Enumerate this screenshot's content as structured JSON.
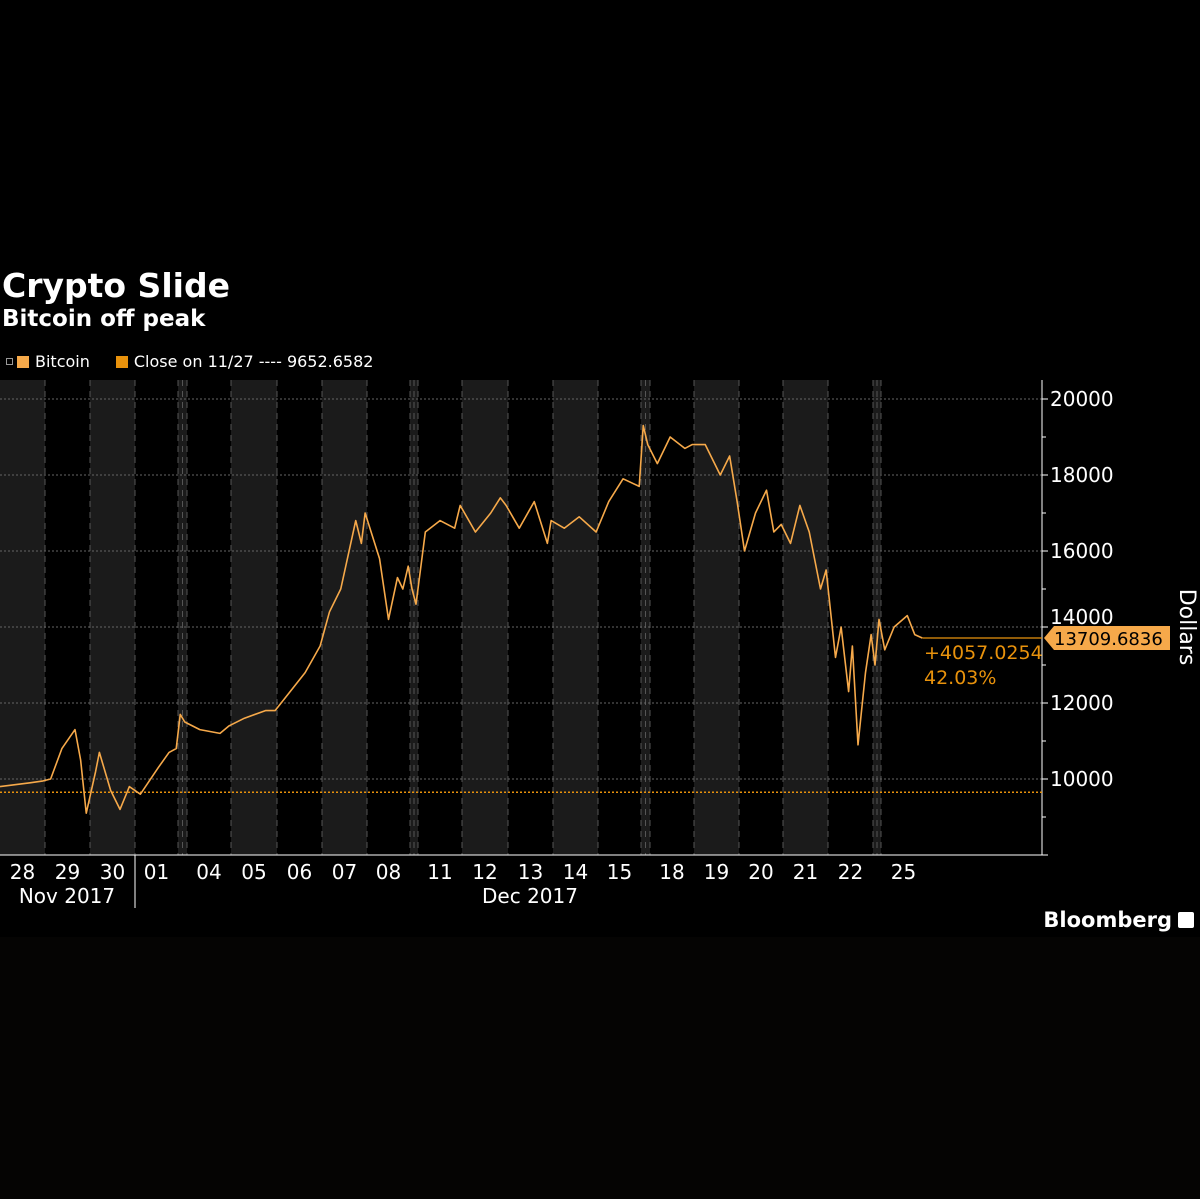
{
  "title": "Crypto Slide",
  "subtitle": "Bitcoin off peak",
  "legend": [
    {
      "label": "Bitcoin",
      "color": "#f6a94a"
    },
    {
      "label": "Close on 11/27 ---- 9652.6582",
      "color": "#e8920c"
    }
  ],
  "brand": "Bloomberg",
  "colors": {
    "line": "#f6a94a",
    "reference": "#e8920c",
    "band": "#1b1b1b",
    "background": "#000000"
  },
  "chart_data": {
    "type": "line",
    "title": "Crypto Slide",
    "subtitle": "Bitcoin off peak",
    "ylabel": "Dollars",
    "ylim": [
      8000,
      20500
    ],
    "yticks": [
      10000,
      12000,
      14000,
      16000,
      18000,
      20000
    ],
    "grid": true,
    "y_axis_side": "right",
    "xtick_labels": [
      {
        "date": "2017-11-28",
        "label": "28"
      },
      {
        "date": "2017-11-29",
        "label": "29"
      },
      {
        "date": "2017-11-30",
        "label": "30"
      },
      {
        "date": "2017-12-01",
        "label": "01"
      },
      {
        "date": "2017-12-04",
        "label": "04"
      },
      {
        "date": "2017-12-05",
        "label": "05"
      },
      {
        "date": "2017-12-06",
        "label": "06"
      },
      {
        "date": "2017-12-07",
        "label": "07"
      },
      {
        "date": "2017-12-08",
        "label": "08"
      },
      {
        "date": "2017-12-11",
        "label": "11"
      },
      {
        "date": "2017-12-12",
        "label": "12"
      },
      {
        "date": "2017-12-13",
        "label": "13"
      },
      {
        "date": "2017-12-14",
        "label": "14"
      },
      {
        "date": "2017-12-15",
        "label": "15"
      },
      {
        "date": "2017-12-18",
        "label": "18"
      },
      {
        "date": "2017-12-19",
        "label": "19"
      },
      {
        "date": "2017-12-20",
        "label": "20"
      },
      {
        "date": "2017-12-21",
        "label": "21"
      },
      {
        "date": "2017-12-22",
        "label": "22"
      },
      {
        "date": "2017-12-25",
        "label": "25"
      }
    ],
    "month_labels": [
      {
        "label": "Nov 2017"
      },
      {
        "label": "Dec 2017"
      }
    ],
    "reference_line": {
      "label": "Close on 11/27",
      "value": 9652.6582
    },
    "last_value": 13709.6836,
    "change": "+4057.0254",
    "change_pct": "42.03%",
    "series": [
      {
        "name": "Bitcoin",
        "points": [
          [
            "2017-11-28T00",
            9800
          ],
          [
            "2017-11-28T08",
            9850
          ],
          [
            "2017-11-28T16",
            9900
          ],
          [
            "2017-11-28T23",
            9950
          ],
          [
            "2017-11-29T03",
            10000
          ],
          [
            "2017-11-29T09",
            10800
          ],
          [
            "2017-11-29T16",
            11300
          ],
          [
            "2017-11-29T19",
            10500
          ],
          [
            "2017-11-29T22",
            9100
          ],
          [
            "2017-11-30T03",
            10200
          ],
          [
            "2017-11-30T05",
            10700
          ],
          [
            "2017-11-30T11",
            9700
          ],
          [
            "2017-11-30T16",
            9200
          ],
          [
            "2017-11-30T21",
            9800
          ],
          [
            "2017-12-01T03",
            9600
          ],
          [
            "2017-12-01T13",
            10300
          ],
          [
            "2017-12-01T19",
            10700
          ],
          [
            "2017-12-01T23",
            10800
          ],
          [
            "2017-12-02T12",
            11700
          ],
          [
            "2017-12-03T12",
            11500
          ],
          [
            "2017-12-04T07",
            11300
          ],
          [
            "2017-12-04T18",
            11200
          ],
          [
            "2017-12-04T23",
            11400
          ],
          [
            "2017-12-05T07",
            11600
          ],
          [
            "2017-12-05T18",
            11800
          ],
          [
            "2017-12-05T23",
            11800
          ],
          [
            "2017-12-06T07",
            12300
          ],
          [
            "2017-12-06T15",
            12800
          ],
          [
            "2017-12-06T23",
            13500
          ],
          [
            "2017-12-07T04",
            14400
          ],
          [
            "2017-12-07T10",
            15000
          ],
          [
            "2017-12-07T18",
            16800
          ],
          [
            "2017-12-07T21",
            16200
          ],
          [
            "2017-12-07T23",
            17000
          ],
          [
            "2017-12-08T07",
            15800
          ],
          [
            "2017-12-08T12",
            14200
          ],
          [
            "2017-12-08T17",
            15300
          ],
          [
            "2017-12-08T20",
            15000
          ],
          [
            "2017-12-08T23",
            15600
          ],
          [
            "2017-12-09T12",
            15000
          ],
          [
            "2017-12-10T12",
            14600
          ],
          [
            "2017-12-11T04",
            16500
          ],
          [
            "2017-12-11T12",
            16800
          ],
          [
            "2017-12-11T20",
            16600
          ],
          [
            "2017-12-11T23",
            17200
          ],
          [
            "2017-12-12T07",
            16500
          ],
          [
            "2017-12-12T15",
            17000
          ],
          [
            "2017-12-12T20",
            17400
          ],
          [
            "2017-12-12T23",
            17200
          ],
          [
            "2017-12-13T06",
            16600
          ],
          [
            "2017-12-13T14",
            17300
          ],
          [
            "2017-12-13T21",
            16200
          ],
          [
            "2017-12-13T23",
            16800
          ],
          [
            "2017-12-14T06",
            16600
          ],
          [
            "2017-12-14T14",
            16900
          ],
          [
            "2017-12-14T23",
            16500
          ],
          [
            "2017-12-15T06",
            17300
          ],
          [
            "2017-12-15T14",
            17900
          ],
          [
            "2017-12-15T23",
            17700
          ],
          [
            "2017-12-16T12",
            19300
          ],
          [
            "2017-12-17T12",
            18800
          ],
          [
            "2017-12-18T04",
            18300
          ],
          [
            "2017-12-18T11",
            19000
          ],
          [
            "2017-12-18T19",
            18700
          ],
          [
            "2017-12-18T23",
            18800
          ],
          [
            "2017-12-19T06",
            18800
          ],
          [
            "2017-12-19T14",
            18000
          ],
          [
            "2017-12-19T19",
            18500
          ],
          [
            "2017-12-19T23",
            17300
          ],
          [
            "2017-12-20T03",
            16000
          ],
          [
            "2017-12-20T09",
            17000
          ],
          [
            "2017-12-20T15",
            17600
          ],
          [
            "2017-12-20T19",
            16500
          ],
          [
            "2017-12-20T23",
            16700
          ],
          [
            "2017-12-21T04",
            16200
          ],
          [
            "2017-12-21T09",
            17200
          ],
          [
            "2017-12-21T14",
            16500
          ],
          [
            "2017-12-21T20",
            15000
          ],
          [
            "2017-12-21T23",
            15500
          ],
          [
            "2017-12-22T04",
            13200
          ],
          [
            "2017-12-22T07",
            14000
          ],
          [
            "2017-12-22T11",
            12300
          ],
          [
            "2017-12-22T13",
            13500
          ],
          [
            "2017-12-22T16",
            10900
          ],
          [
            "2017-12-22T20",
            12800
          ],
          [
            "2017-12-22T23",
            13800
          ],
          [
            "2017-12-23T12",
            13000
          ],
          [
            "2017-12-24T12",
            14200
          ],
          [
            "2017-12-25T02",
            13400
          ],
          [
            "2017-12-25T07",
            14000
          ],
          [
            "2017-12-25T14",
            14300
          ],
          [
            "2017-12-25T18",
            13800
          ],
          [
            "2017-12-25T22",
            13709.6836
          ]
        ]
      }
    ]
  }
}
